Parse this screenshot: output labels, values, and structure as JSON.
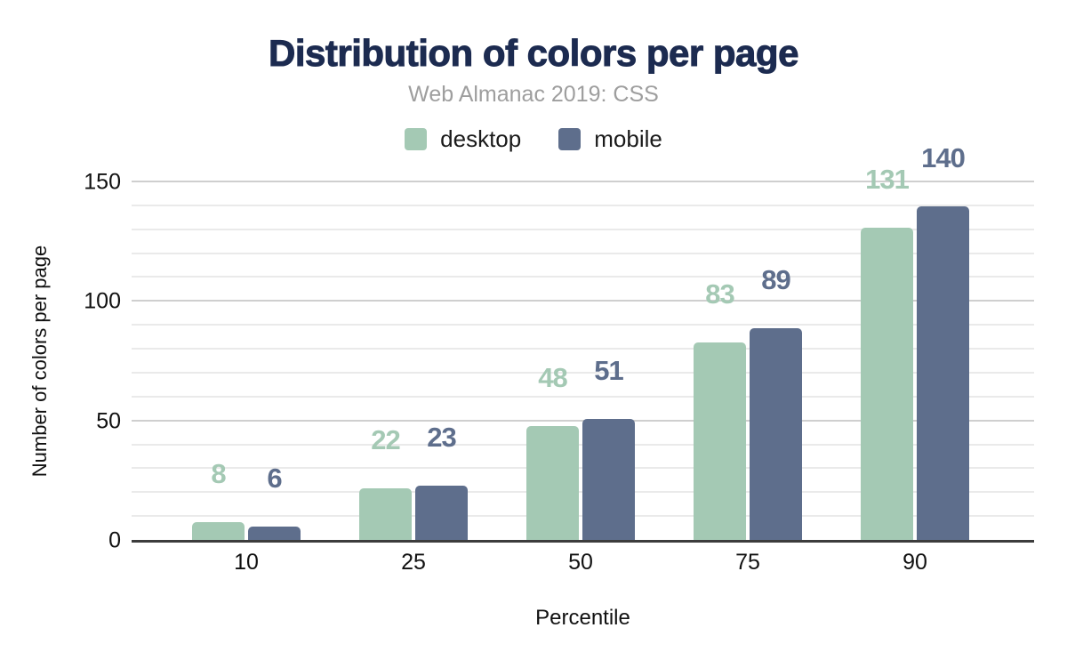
{
  "title": "Distribution of colors per page",
  "subtitle": "Web Almanac 2019: CSS",
  "colors": {
    "title": "#1c2b50",
    "subtitle": "#9e9e9e",
    "desktop": "#a4c9b4",
    "mobile": "#5e6e8c",
    "grid_major": "#cfcfcf",
    "grid_minor": "#eaeaea",
    "axis_line": "#3c3c3c",
    "tick_text": "#111111"
  },
  "legend": [
    {
      "label": "desktop",
      "color": "#a4c9b4"
    },
    {
      "label": "mobile",
      "color": "#5e6e8c"
    }
  ],
  "chart_data": {
    "type": "bar",
    "categories": [
      "10",
      "25",
      "50",
      "75",
      "90"
    ],
    "series": [
      {
        "name": "desktop",
        "color": "#a4c9b4",
        "values": [
          8,
          22,
          48,
          83,
          131
        ]
      },
      {
        "name": "mobile",
        "color": "#5e6e8c",
        "values": [
          6,
          23,
          51,
          89,
          140
        ]
      }
    ],
    "title": "Distribution of colors per page",
    "subtitle": "Web Almanac 2019: CSS",
    "xlabel": "Percentile",
    "ylabel": "Number of colors per page",
    "ylim": [
      0,
      150
    ],
    "yticks": [
      0,
      50,
      100,
      150
    ],
    "minor_step": 10,
    "grid": true,
    "legend_position": "top",
    "annotations": "values shown above each bar in series color"
  }
}
